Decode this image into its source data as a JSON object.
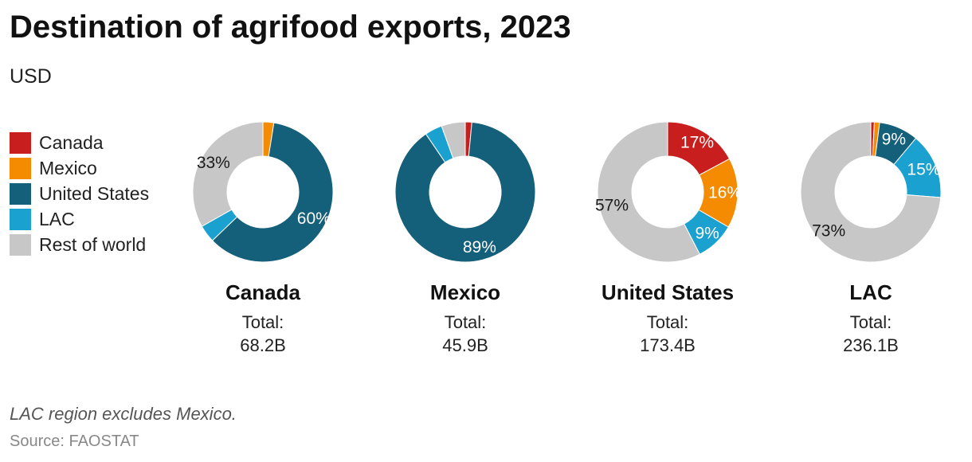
{
  "title": "Destination of agrifood exports, 2023",
  "subtitle": "USD",
  "note": "LAC region excludes Mexico.",
  "source": "Source: FAOSTAT",
  "colors": {
    "Canada": "#c91e1e",
    "Mexico": "#f58b00",
    "United States": "#145f7a",
    "LAC": "#1aa1cf",
    "Rest of world": "#c7c7c7"
  },
  "legend": [
    "Canada",
    "Mexico",
    "United States",
    "LAC",
    "Rest of world"
  ],
  "chart_data": {
    "type": "pie",
    "style": "donut",
    "categories": [
      "Canada",
      "Mexico",
      "United States",
      "LAC",
      "Rest of world"
    ],
    "series": [
      {
        "name": "Canada",
        "total_label": "Total:",
        "total": "68.2B",
        "values": [
          0,
          2.5,
          60,
          4,
          33
        ],
        "labels": [
          "",
          "",
          "60%",
          "",
          "33%"
        ]
      },
      {
        "name": "Mexico",
        "total_label": "Total:",
        "total": "45.9B",
        "values": [
          1.5,
          0,
          89,
          4,
          5.5
        ],
        "labels": [
          "",
          "",
          "89%",
          "",
          ""
        ]
      },
      {
        "name": "United States",
        "total_label": "Total:",
        "total": "173.4B",
        "values": [
          17,
          16,
          0,
          9,
          57
        ],
        "labels": [
          "17%",
          "16%",
          "",
          "9%",
          "57%"
        ]
      },
      {
        "name": "LAC",
        "total_label": "Total:",
        "total": "236.1B",
        "values": [
          0.8,
          1.2,
          9,
          15,
          73
        ],
        "labels": [
          "",
          "",
          "9%",
          "15%",
          "73%"
        ]
      }
    ]
  }
}
